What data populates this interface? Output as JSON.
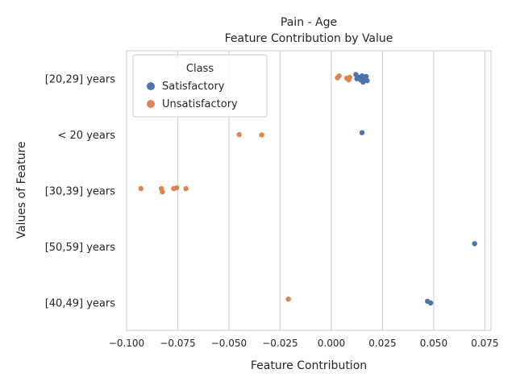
{
  "chart_data": {
    "type": "scatter",
    "title": "Pain - Age",
    "subtitle": "Feature Contribution by Value",
    "xlabel": "Feature Contribution",
    "ylabel": "Values of Feature",
    "xlim": [
      -0.1,
      0.078
    ],
    "x_ticks": [
      -0.1,
      -0.075,
      -0.05,
      -0.025,
      0.0,
      0.025,
      0.05,
      0.075
    ],
    "x_tick_labels": [
      "−0.100",
      "−0.075",
      "−0.050",
      "−0.025",
      "0.000",
      "0.025",
      "0.050",
      "0.075"
    ],
    "categories": [
      "[20,29] years",
      "< 20 years",
      "[30,39] years",
      "[50,59] years",
      "[40,49] years"
    ],
    "grid": "vertical",
    "legend": {
      "title": "Class",
      "placement": "top-left",
      "entries": [
        "Satisfactory",
        "Unsatisfactory"
      ]
    },
    "series": [
      {
        "name": "Satisfactory",
        "color": "#4c72b0",
        "points": [
          {
            "category": "[20,29] years",
            "x": 0.012,
            "jitter": -0.15
          },
          {
            "category": "[20,29] years",
            "x": 0.0125,
            "jitter": 0.0
          },
          {
            "category": "[20,29] years",
            "x": 0.0135,
            "jitter": -0.05
          },
          {
            "category": "[20,29] years",
            "x": 0.0145,
            "jitter": 0.05
          },
          {
            "category": "[20,29] years",
            "x": 0.015,
            "jitter": -0.1
          },
          {
            "category": "[20,29] years",
            "x": 0.0155,
            "jitter": 0.12
          },
          {
            "category": "[20,29] years",
            "x": 0.016,
            "jitter": 0.03
          },
          {
            "category": "[20,29] years",
            "x": 0.017,
            "jitter": -0.08
          },
          {
            "category": "[20,29] years",
            "x": 0.0175,
            "jitter": 0.07
          },
          {
            "category": "< 20 years",
            "x": 0.015,
            "jitter": -0.07
          },
          {
            "category": "[50,59] years",
            "x": 0.07,
            "jitter": -0.1
          },
          {
            "category": "[40,49] years",
            "x": 0.047,
            "jitter": -0.04
          },
          {
            "category": "[40,49] years",
            "x": 0.0485,
            "jitter": 0.02
          }
        ]
      },
      {
        "name": "Unsatisfactory",
        "color": "#dd8452",
        "points": [
          {
            "category": "[20,29] years",
            "x": 0.003,
            "jitter": -0.03
          },
          {
            "category": "[20,29] years",
            "x": 0.0038,
            "jitter": -0.1
          },
          {
            "category": "[20,29] years",
            "x": 0.0075,
            "jitter": -0.02
          },
          {
            "category": "[20,29] years",
            "x": 0.0085,
            "jitter": 0.04
          },
          {
            "category": "[20,29] years",
            "x": 0.009,
            "jitter": -0.05
          },
          {
            "category": "< 20 years",
            "x": -0.045,
            "jitter": 0.0
          },
          {
            "category": "< 20 years",
            "x": -0.034,
            "jitter": 0.01
          },
          {
            "category": "[30,39] years",
            "x": -0.093,
            "jitter": -0.07
          },
          {
            "category": "[30,39] years",
            "x": -0.083,
            "jitter": -0.07
          },
          {
            "category": "[30,39] years",
            "x": -0.0825,
            "jitter": 0.05
          },
          {
            "category": "[30,39] years",
            "x": -0.077,
            "jitter": -0.07
          },
          {
            "category": "[30,39] years",
            "x": -0.0755,
            "jitter": -0.1
          },
          {
            "category": "[30,39] years",
            "x": -0.071,
            "jitter": -0.07
          },
          {
            "category": "[40,49] years",
            "x": -0.021,
            "jitter": -0.12
          }
        ]
      }
    ]
  }
}
